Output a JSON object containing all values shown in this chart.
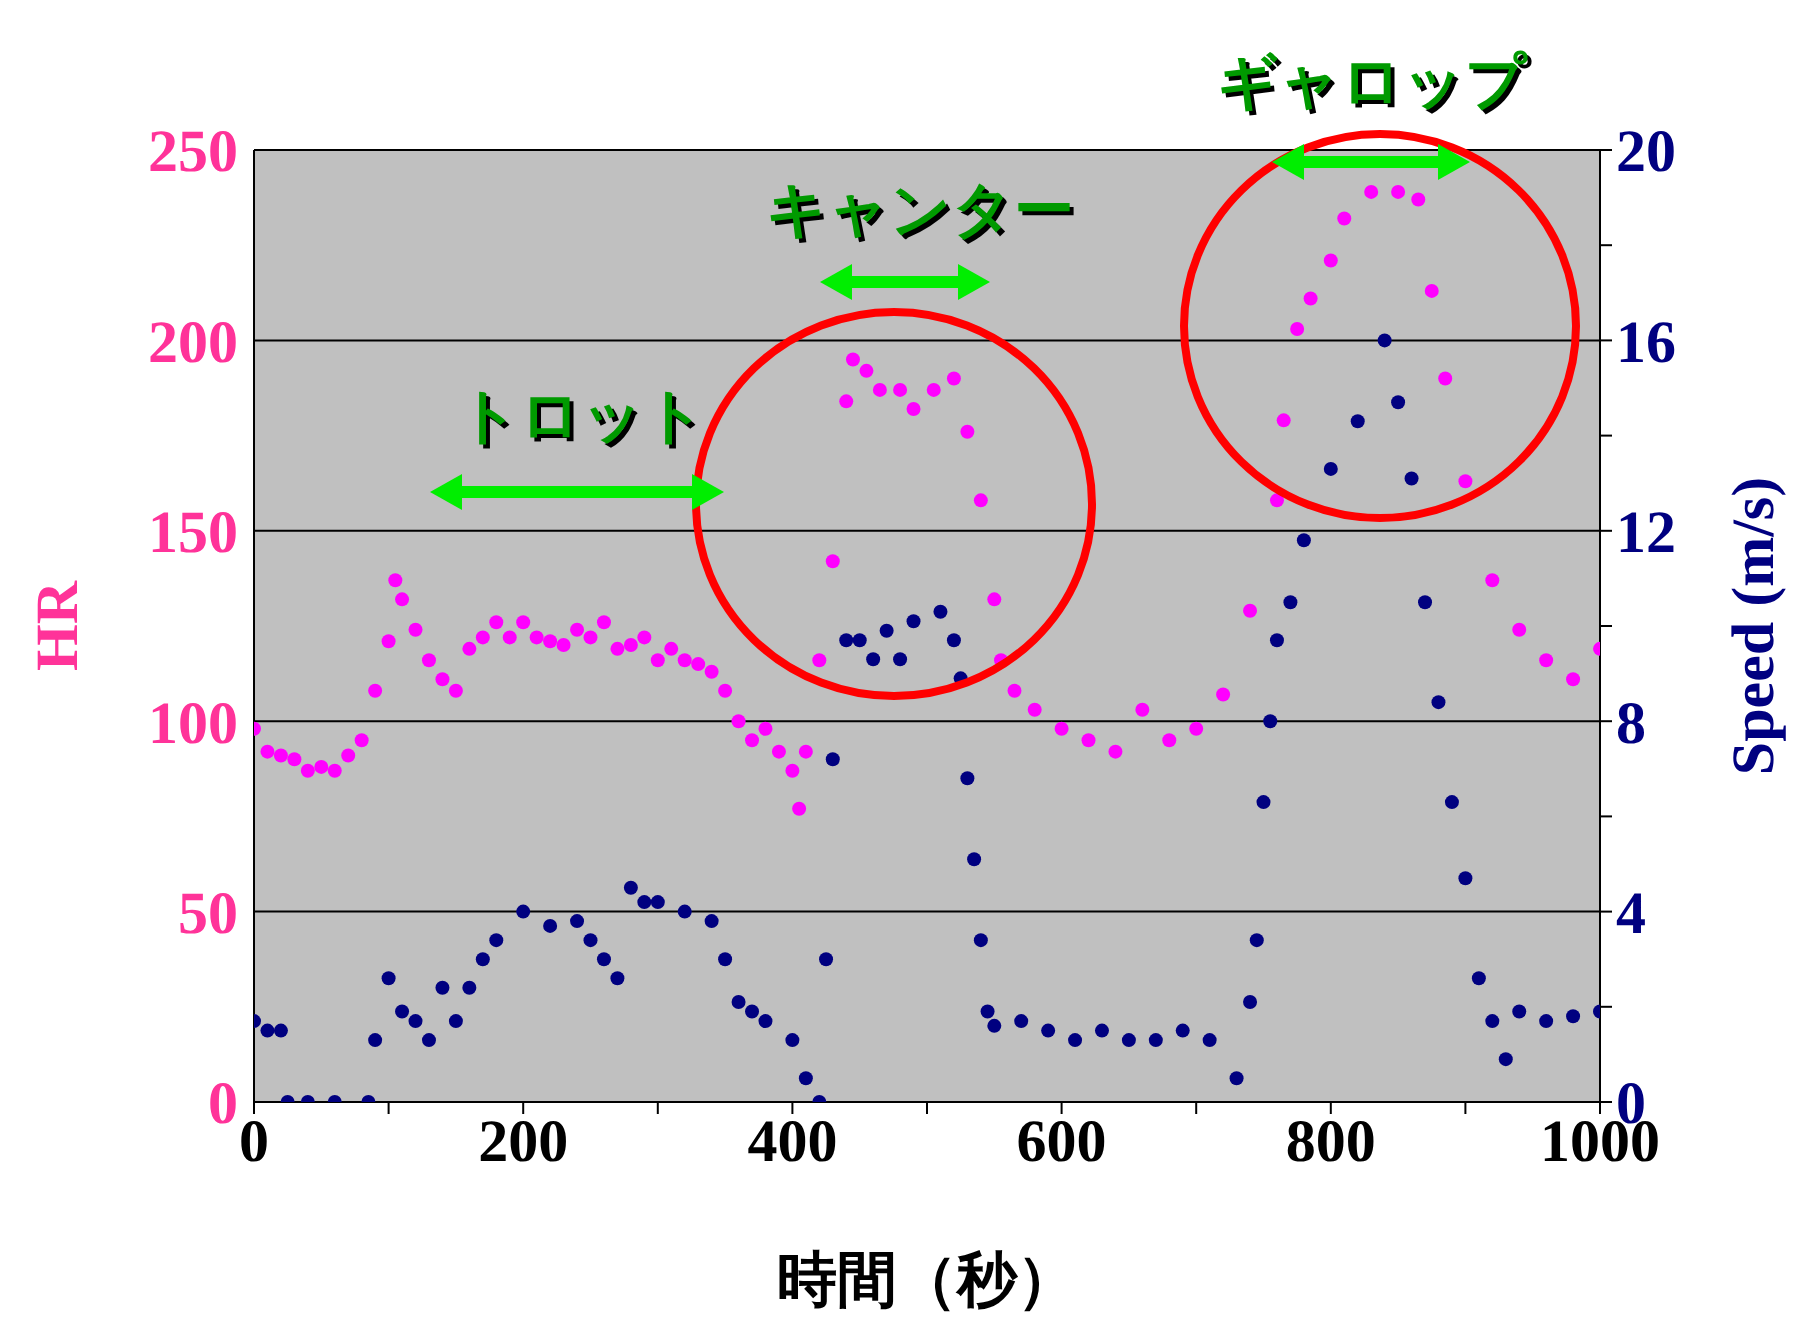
{
  "chart_data": {
    "type": "scatter",
    "xlabel": "時間（秒）",
    "ylabel": "HR",
    "y2label": "Speed (m/s)",
    "xlim": [
      0,
      1000
    ],
    "xticks": [
      0,
      {
        "value": 100,
        "label": null
      },
      200,
      {
        "value": 300,
        "label": null
      },
      400,
      {
        "value": 500,
        "label": null
      },
      600,
      {
        "value": 700,
        "label": null
      },
      800,
      {
        "value": 900,
        "label": null
      },
      1000
    ],
    "ylim": [
      0,
      250
    ],
    "yticks": [
      0,
      50,
      100,
      150,
      200,
      250
    ],
    "y2lim": [
      0,
      20
    ],
    "y2ticks": [
      0,
      {
        "value": 2,
        "label": null
      },
      4,
      {
        "value": 6,
        "label": null
      },
      8,
      {
        "value": 10,
        "label": null
      },
      12,
      {
        "value": 14,
        "label": null
      },
      16,
      {
        "value": 18,
        "label": null
      },
      20
    ],
    "grid": "y",
    "legend": false,
    "marker": "circle",
    "annotations": [
      "トロット",
      "キャンター",
      "ギャロップ"
    ],
    "series": [
      {
        "color": "#ff00ff",
        "x": [
          0,
          10,
          20,
          30,
          40,
          50,
          60,
          70,
          80,
          90,
          100,
          105,
          110,
          120,
          130,
          140,
          150,
          160,
          170,
          180,
          190,
          200,
          210,
          220,
          230,
          240,
          250,
          260,
          270,
          280,
          290,
          300,
          310,
          320,
          330,
          340,
          350,
          360,
          370,
          380,
          390,
          400,
          405,
          410,
          420,
          430,
          440,
          445,
          455,
          465,
          480,
          490,
          505,
          520,
          530,
          540,
          550,
          555,
          565,
          580,
          600,
          620,
          640,
          660,
          680,
          700,
          720,
          740,
          760,
          765,
          775,
          785,
          800,
          810,
          830,
          850,
          865,
          875,
          885,
          900,
          920,
          940,
          960,
          980,
          1000
        ],
        "values": [
          98,
          92,
          91,
          90,
          87,
          88,
          87,
          91,
          95,
          108,
          121,
          137,
          132,
          124,
          116,
          111,
          108,
          119,
          122,
          126,
          122,
          126,
          122,
          121,
          120,
          124,
          122,
          126,
          119,
          120,
          122,
          116,
          119,
          116,
          115,
          113,
          108,
          100,
          95,
          98,
          92,
          87,
          77,
          92,
          116,
          142,
          184,
          195,
          192,
          187,
          187,
          182,
          187,
          190,
          176,
          158,
          132,
          116,
          108,
          103,
          98,
          95,
          92,
          103,
          95,
          98,
          107,
          129,
          158,
          179,
          203,
          211,
          221,
          232,
          239,
          239,
          237,
          213,
          190,
          163,
          137,
          124,
          116,
          111,
          119
        ]
      },
      {
        "color": "#000080",
        "axis": "y2",
        "x": [
          0,
          10,
          20,
          25,
          40,
          60,
          85,
          90,
          100,
          110,
          120,
          130,
          140,
          150,
          160,
          170,
          180,
          200,
          220,
          240,
          250,
          260,
          270,
          280,
          290,
          300,
          320,
          340,
          350,
          360,
          370,
          380,
          400,
          410,
          420,
          425,
          430,
          440,
          450,
          460,
          470,
          480,
          490,
          510,
          520,
          525,
          530,
          535,
          540,
          545,
          550,
          570,
          590,
          610,
          630,
          650,
          670,
          690,
          710,
          730,
          740,
          745,
          750,
          755,
          760,
          770,
          780,
          800,
          820,
          840,
          850,
          860,
          870,
          880,
          890,
          900,
          910,
          920,
          930,
          940,
          960,
          980,
          1000
        ],
        "values": [
          1.7,
          1.5,
          1.5,
          0,
          0,
          0,
          0,
          1.3,
          2.6,
          1.9,
          1.7,
          1.3,
          2.4,
          1.7,
          2.4,
          3.0,
          3.4,
          4.0,
          3.7,
          3.8,
          3.4,
          3.0,
          2.6,
          4.5,
          4.2,
          4.2,
          4.0,
          3.8,
          3.0,
          2.1,
          1.9,
          1.7,
          1.3,
          0.5,
          0,
          3.0,
          7.2,
          9.7,
          9.7,
          9.3,
          9.9,
          9.3,
          10.1,
          10.3,
          9.7,
          8.9,
          6.8,
          5.1,
          3.4,
          1.9,
          1.6,
          1.7,
          1.5,
          1.3,
          1.5,
          1.3,
          1.3,
          1.5,
          1.3,
          0.5,
          2.1,
          3.4,
          6.3,
          8.0,
          9.7,
          10.5,
          11.8,
          13.3,
          14.3,
          16.0,
          14.7,
          13.1,
          10.5,
          8.4,
          6.3,
          4.7,
          2.6,
          1.7,
          0.9,
          1.9,
          1.7,
          1.8,
          1.9
        ]
      }
    ]
  }
}
